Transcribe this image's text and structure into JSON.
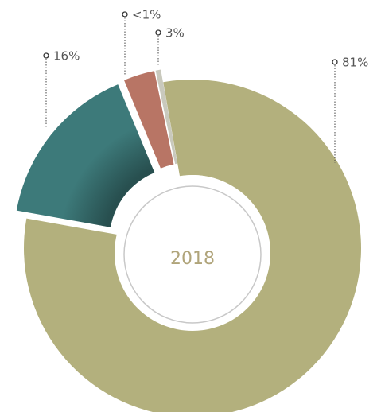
{
  "chart_data": {
    "type": "donut",
    "center_label": "2018",
    "values": [
      81,
      16,
      3,
      0.5
    ],
    "value_labels": [
      "81%",
      "16%",
      "3%",
      "<1%"
    ],
    "colors": [
      "#b3b07d",
      "#3d7a7a",
      "#b87565",
      "#c9c9bd"
    ]
  }
}
